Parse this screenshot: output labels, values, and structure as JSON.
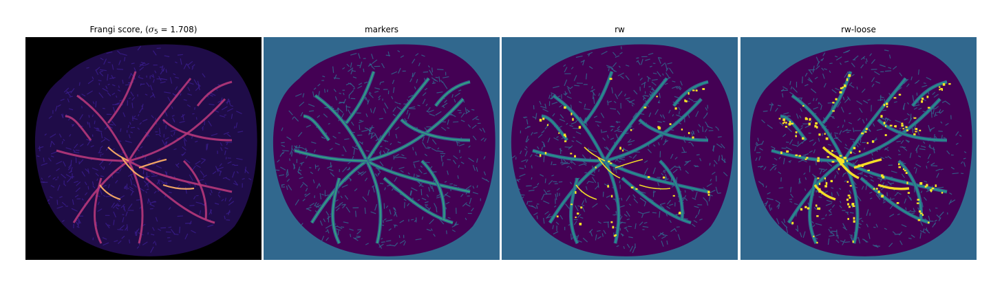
{
  "panels": [
    {
      "title_prefix": "Frangi score, (",
      "title_symbol": "σ",
      "title_sub": "5",
      "title_suffix": " = 1.708)",
      "colormap": "magma",
      "background": "#000000",
      "tissue": "#1f0c48",
      "vessel": "#b6377a",
      "highlight": "#fcae65"
    },
    {
      "title": "markers",
      "colormap": "viridis",
      "background": "#31688e",
      "tissue": "#440154",
      "vessel": "#35b779",
      "highlight": "#35b779"
    },
    {
      "title": "rw",
      "colormap": "viridis",
      "background": "#31688e",
      "tissue": "#440154",
      "vessel": "#21a585",
      "highlight": "#fde725"
    },
    {
      "title": "rw-loose",
      "colormap": "viridis",
      "background": "#31688e",
      "tissue": "#440154",
      "vessel": "#21a585",
      "highlight": "#fde725"
    }
  ]
}
